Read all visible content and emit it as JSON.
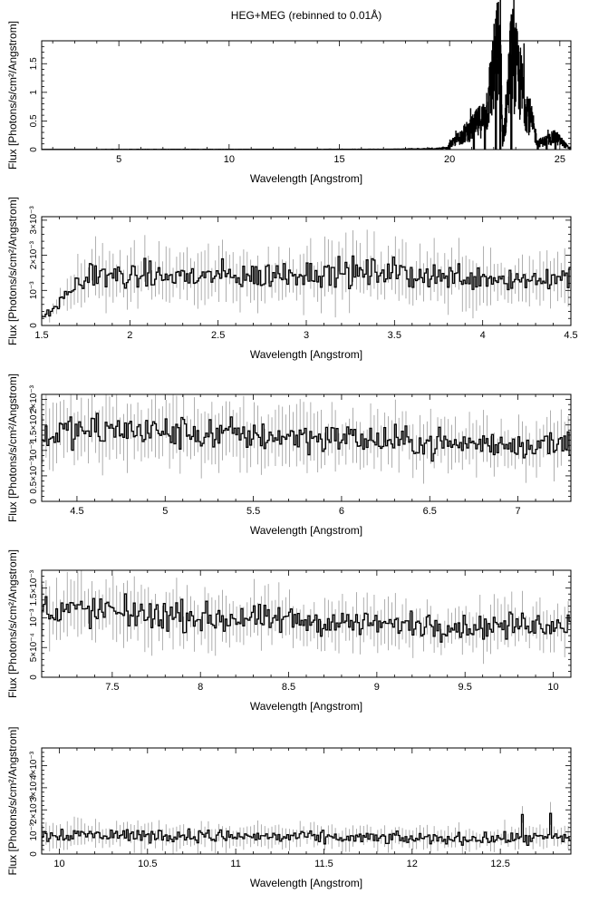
{
  "figure": {
    "title": "HEG+MEG (rebinned to 0.01Å)"
  },
  "chart_data": [
    {
      "type": "line",
      "title": "HEG+MEG (rebinned to 0.01Å)",
      "xlabel": "Wavelength [Angstrom]",
      "ylabel": "Flux [Photons/s/cm²/Angstrom]",
      "xlim": [
        1.5,
        25.5
      ],
      "ylim": [
        0,
        1.9
      ],
      "xticks": [
        "5",
        "10",
        "15",
        "20",
        "25"
      ],
      "yticks": [
        "0",
        "0.5",
        "1",
        "1.5"
      ],
      "grid": false,
      "series": [
        {
          "x": [
            1.5,
            17.0,
            17.5,
            18.0,
            18.6,
            19.0,
            19.3,
            19.6,
            19.9,
            20.0,
            21.1,
            21.6,
            22.1,
            22.3,
            22.4,
            22.8,
            24.0,
            24.4,
            24.8,
            25.4
          ],
          "values": [
            0.003,
            0.005,
            0.006,
            0.008,
            0.01,
            0.012,
            0.015,
            0.02,
            0.025,
            0.08,
            0.4,
            0.57,
            1.57,
            1.83,
            0.05,
            1.66,
            0.11,
            0.16,
            0.22,
            0.03
          ]
        }
      ]
    },
    {
      "type": "line",
      "xlabel": "Wavelength [Angstrom]",
      "ylabel": "Flux [Photons/s/cm²/Angstrom]",
      "xlim": [
        1.5,
        4.5
      ],
      "ylim": [
        0,
        0.0031
      ],
      "xticks": [
        "1.5",
        "2",
        "2.5",
        "3",
        "3.5",
        "4",
        "4.5"
      ],
      "yticks": [
        "0",
        "10⁻³",
        "2×10⁻³",
        "3×10⁻³"
      ],
      "grid": false,
      "series": [
        {
          "x": [
            1.5,
            1.6,
            1.7,
            1.8,
            1.9,
            2.0,
            2.25,
            2.5,
            2.75,
            3.0,
            3.25,
            3.5,
            3.75,
            4.0,
            4.25,
            4.5
          ],
          "values": [
            0.0002,
            0.0006,
            0.0012,
            0.0015,
            0.0014,
            0.0014,
            0.0014,
            0.0014,
            0.0014,
            0.0015,
            0.0015,
            0.0015,
            0.0014,
            0.0014,
            0.0013,
            0.0014
          ]
        }
      ]
    },
    {
      "type": "line",
      "xlabel": "Wavelength [Angstrom]",
      "ylabel": "Flux [Photons/s/cm²/Angstrom]",
      "xlim": [
        4.3,
        7.3
      ],
      "ylim": [
        0.0,
        0.0021
      ],
      "xticks": [
        "4.5",
        "5",
        "5.5",
        "6",
        "6.5",
        "7"
      ],
      "yticks": [
        "0",
        "0.5×10⁻³",
        "10⁻³",
        "1.5×10⁻³",
        "2×10⁻³"
      ],
      "grid": false,
      "series": [
        {
          "x": [
            4.3,
            4.5,
            4.75,
            5.0,
            5.25,
            5.5,
            5.75,
            6.0,
            6.25,
            6.5,
            6.75,
            7.0,
            7.3
          ],
          "values": [
            0.00135,
            0.00135,
            0.0014,
            0.00135,
            0.00132,
            0.0013,
            0.00128,
            0.00125,
            0.00118,
            0.00115,
            0.00112,
            0.0011,
            0.00115
          ]
        }
      ]
    },
    {
      "type": "line",
      "xlabel": "Wavelength [Angstrom]",
      "ylabel": "Flux [Photons/s/cm²/Angstrom]",
      "xlim": [
        7.1,
        10.1
      ],
      "ylim": [
        0,
        0.0018
      ],
      "xticks": [
        "7.5",
        "8",
        "8.5",
        "9",
        "9.5",
        "10"
      ],
      "yticks": [
        "0",
        "5×10⁻⁴",
        "10⁻³",
        "1.5×10⁻³"
      ],
      "grid": false,
      "series": [
        {
          "x": [
            7.1,
            7.5,
            8.0,
            8.5,
            9.0,
            9.5,
            10.1
          ],
          "values": [
            0.00115,
            0.0011,
            0.001,
            0.00095,
            0.0009,
            0.00085,
            0.0009
          ]
        }
      ]
    },
    {
      "type": "line",
      "xlabel": "Wavelength [Angstrom]",
      "ylabel": "Flux [Photons/s/cm²/Angstrom]",
      "xlim": [
        9.9,
        12.9
      ],
      "ylim": [
        0,
        0.0048
      ],
      "xticks": [
        "10",
        "10.5",
        "11",
        "11.5",
        "12",
        "12.5"
      ],
      "yticks": [
        "0",
        "10⁻³",
        "2×10⁻³",
        "3×10⁻³",
        "4×10⁻³"
      ],
      "grid": false,
      "series": [
        {
          "x": [
            9.9,
            10.5,
            11.0,
            11.5,
            12.0,
            12.5,
            12.9
          ],
          "values": [
            0.0009,
            0.00085,
            0.0008,
            0.00075,
            0.0007,
            0.0007,
            0.00075
          ]
        }
      ]
    }
  ]
}
